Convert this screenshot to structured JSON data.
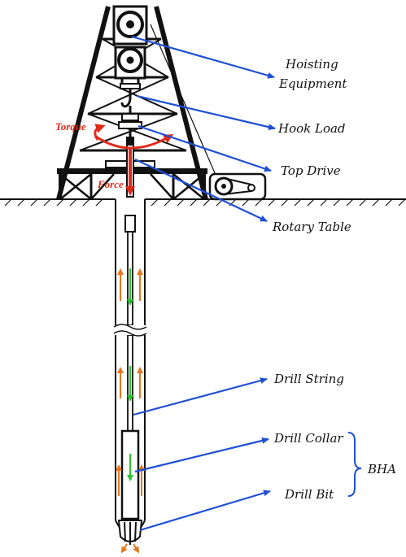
{
  "labels": {
    "hoisting_line1": "Hoisting",
    "hoisting_line2": "Equipment",
    "hook_load": "Hook Load",
    "top_drive": "Top Drive",
    "rotary_table": "Rotary Table",
    "drill_string": "Drill String",
    "drill_collar": "Drill Collar",
    "drill_bit": "Drill Bit",
    "bha": "BHA",
    "torque": "Torque",
    "force": "Force"
  },
  "colors": {
    "leader_arrow": "#1f4fd6",
    "torque_force": "#e02a1a",
    "upflow_arrow": "#e8761c",
    "downflow_arrow": "#2ec22e",
    "structure": "#111111"
  }
}
